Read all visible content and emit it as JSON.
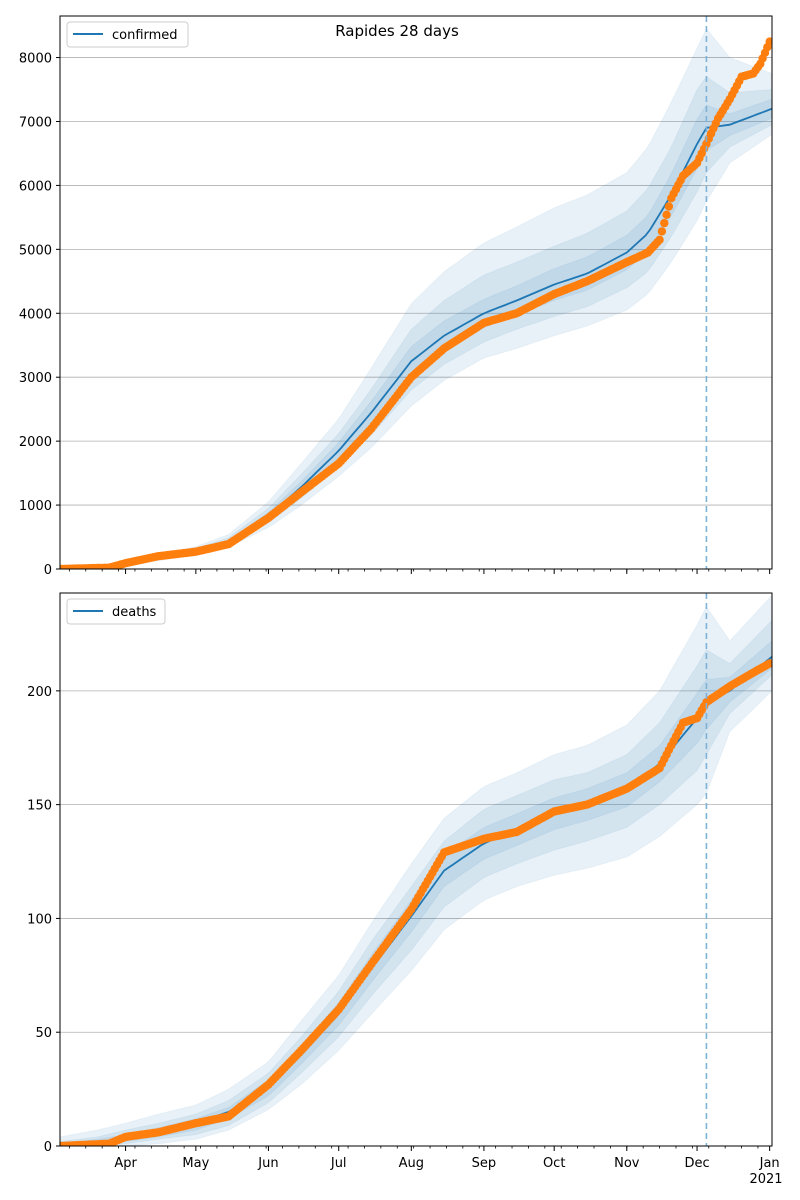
{
  "chart_title": "Rapides 28 days",
  "colors": {
    "model": "#1f77b4",
    "observed": "#ff7f0e",
    "band": "#1f77b4",
    "grid": "#b0b0b0",
    "forecast_line": "#7fb2d6"
  },
  "x_axis": {
    "tick_labels": [
      "Apr",
      "May",
      "Jun",
      "Jul",
      "Aug",
      "Sep",
      "Oct",
      "Nov",
      "Dec",
      "Jan"
    ],
    "tick_dates": [
      "2020-04-01",
      "2020-05-01",
      "2020-06-01",
      "2020-07-01",
      "2020-08-01",
      "2020-09-01",
      "2020-10-01",
      "2020-11-01",
      "2020-12-01",
      "2021-01-01"
    ],
    "year_label": "2021",
    "range": [
      "2020-03-04",
      "2021-01-02"
    ],
    "forecast_start": "2020-12-05"
  },
  "chart_data": [
    {
      "type": "line",
      "legend": "confirmed",
      "legend_position": "upper left",
      "grid": "horizontal",
      "ylim": [
        0,
        8650
      ],
      "yticks": [
        0,
        1000,
        2000,
        3000,
        4000,
        5000,
        6000,
        7000,
        8000
      ],
      "model": {
        "x": [
          "2020-03-04",
          "2020-03-20",
          "2020-04-01",
          "2020-04-15",
          "2020-05-01",
          "2020-05-15",
          "2020-06-01",
          "2020-06-15",
          "2020-07-01",
          "2020-07-15",
          "2020-08-01",
          "2020-08-15",
          "2020-09-01",
          "2020-09-15",
          "2020-10-01",
          "2020-10-15",
          "2020-11-01",
          "2020-11-10",
          "2020-11-20",
          "2020-12-01",
          "2020-12-05",
          "2020-12-15",
          "2021-01-02"
        ],
        "y": [
          0,
          20,
          80,
          180,
          280,
          430,
          830,
          1280,
          1850,
          2450,
          3250,
          3650,
          4000,
          4200,
          4450,
          4620,
          4950,
          5250,
          5850,
          6650,
          6900,
          6950,
          7200
        ],
        "bands": [
          {
            "lower": [
              0,
              0,
              50,
              130,
              220,
              340,
              650,
              1000,
              1450,
              1900,
              2550,
              2950,
              3300,
              3450,
              3650,
              3800,
              4050,
              4300,
              4800,
              5450,
              5750,
              6350,
              6800
            ],
            "upper": [
              20,
              50,
              110,
              230,
              350,
              540,
              1050,
              1650,
              2350,
              3150,
              4150,
              4650,
              5100,
              5350,
              5650,
              5850,
              6200,
              6600,
              7300,
              8150,
              8450,
              8000,
              7750
            ]
          },
          {
            "lower": [
              0,
              0,
              60,
              150,
              245,
              380,
              720,
              1110,
              1600,
              2100,
              2800,
              3200,
              3550,
              3750,
              3950,
              4100,
              4400,
              4650,
              5200,
              5900,
              6200,
              6600,
              6950
            ],
            "upper": [
              10,
              40,
              100,
              210,
              320,
              490,
              950,
              1480,
              2120,
              2820,
              3750,
              4200,
              4600,
              4800,
              5050,
              5250,
              5600,
              5950,
              6600,
              7500,
              7700,
              7450,
              7500
            ]
          },
          {
            "lower": [
              0,
              5,
              68,
              162,
              258,
              405,
              775,
              1190,
              1720,
              2270,
              3020,
              3420,
              3780,
              3970,
              4200,
              4360,
              4680,
              4970,
              5520,
              6260,
              6540,
              6780,
              7050
            ],
            "upper": [
              5,
              30,
              92,
              198,
              302,
              455,
              885,
              1370,
              1980,
              2630,
              3480,
              3880,
              4220,
              4430,
              4700,
              4880,
              5220,
              5530,
              6180,
              7040,
              7260,
              7120,
              7350
            ]
          }
        ]
      },
      "observed": {
        "x": [
          "2020-03-04",
          "2020-03-25",
          "2020-04-01",
          "2020-04-15",
          "2020-05-01",
          "2020-05-15",
          "2020-06-01",
          "2020-06-15",
          "2020-07-01",
          "2020-07-15",
          "2020-08-01",
          "2020-08-15",
          "2020-09-01",
          "2020-09-15",
          "2020-10-01",
          "2020-10-15",
          "2020-11-01",
          "2020-11-10",
          "2020-11-15",
          "2020-11-20",
          "2020-11-25",
          "2020-12-01",
          "2020-12-05",
          "2020-12-10",
          "2020-12-15",
          "2020-12-20",
          "2020-12-25",
          "2020-12-28",
          "2021-01-01"
        ],
        "y": [
          0,
          20,
          90,
          200,
          270,
          390,
          800,
          1200,
          1650,
          2200,
          3000,
          3450,
          3850,
          4000,
          4300,
          4500,
          4800,
          4950,
          5150,
          5800,
          6150,
          6350,
          6650,
          7050,
          7350,
          7700,
          7750,
          7900,
          8250
        ]
      }
    },
    {
      "type": "line",
      "legend": "deaths",
      "legend_position": "upper left",
      "grid": "horizontal",
      "ylim": [
        0,
        243
      ],
      "yticks": [
        0,
        50,
        100,
        150,
        200
      ],
      "model": {
        "x": [
          "2020-03-04",
          "2020-03-20",
          "2020-04-01",
          "2020-04-15",
          "2020-05-01",
          "2020-05-15",
          "2020-06-01",
          "2020-06-15",
          "2020-07-01",
          "2020-07-15",
          "2020-08-01",
          "2020-08-15",
          "2020-09-01",
          "2020-09-15",
          "2020-10-01",
          "2020-10-15",
          "2020-11-01",
          "2020-11-15",
          "2020-12-01",
          "2020-12-05",
          "2020-12-15",
          "2021-01-02"
        ],
        "y": [
          0,
          1,
          3,
          6,
          10,
          15,
          26,
          40,
          58,
          78,
          101,
          121,
          133,
          139,
          146,
          150,
          157,
          168,
          188,
          195,
          200,
          215
        ],
        "bands": [
          {
            "lower": [
              0,
              0,
              0,
              1,
              3,
              7,
              16,
              27,
              42,
              58,
              77,
              95,
              108,
              114,
              119,
              122,
              127,
              136,
              150,
              155,
              182,
              200
            ],
            "upper": [
              4,
              7,
              10,
              14,
              18,
              25,
              37,
              55,
              75,
              98,
              124,
              144,
              158,
              164,
              172,
              176,
              185,
              200,
              229,
              237,
              222,
              242
            ]
          },
          {
            "lower": [
              0,
              0,
              1,
              3,
              5,
              9,
              19,
              32,
              48,
              66,
              86,
              105,
              118,
              124,
              130,
              134,
              140,
              150,
              165,
              172,
              190,
              207
            ],
            "upper": [
              2,
              4,
              7,
              10,
              14,
              20,
              32,
              48,
              68,
              90,
              114,
              134,
              148,
              154,
              161,
              164,
              172,
              186,
              211,
              218,
              212,
              231
            ]
          },
          {
            "lower": [
              0,
              0,
              2,
              4,
              7,
              12,
              22,
              36,
              53,
              72,
              94,
              114,
              126,
              132,
              139,
              143,
              149,
              160,
              177,
              183,
              195,
              210
            ],
            "upper": [
              1,
              3,
              5,
              8,
              12,
              17,
              29,
              44,
              63,
              84,
              108,
              128,
              140,
              146,
              153,
              157,
              164,
              176,
              199,
              205,
              206,
              222
            ]
          }
        ]
      },
      "observed": {
        "x": [
          "2020-03-04",
          "2020-03-25",
          "2020-04-01",
          "2020-04-15",
          "2020-05-01",
          "2020-05-15",
          "2020-06-01",
          "2020-06-15",
          "2020-07-01",
          "2020-07-15",
          "2020-08-01",
          "2020-08-15",
          "2020-09-01",
          "2020-09-15",
          "2020-10-01",
          "2020-10-15",
          "2020-11-01",
          "2020-11-15",
          "2020-11-25",
          "2020-12-01",
          "2020-12-05",
          "2020-12-15",
          "2020-12-25",
          "2021-01-01"
        ],
        "y": [
          0,
          1,
          4,
          6,
          10,
          13,
          27,
          42,
          60,
          80,
          104,
          129,
          135,
          138,
          147,
          150,
          157,
          166,
          186,
          188,
          195,
          202,
          208,
          212
        ]
      }
    }
  ]
}
